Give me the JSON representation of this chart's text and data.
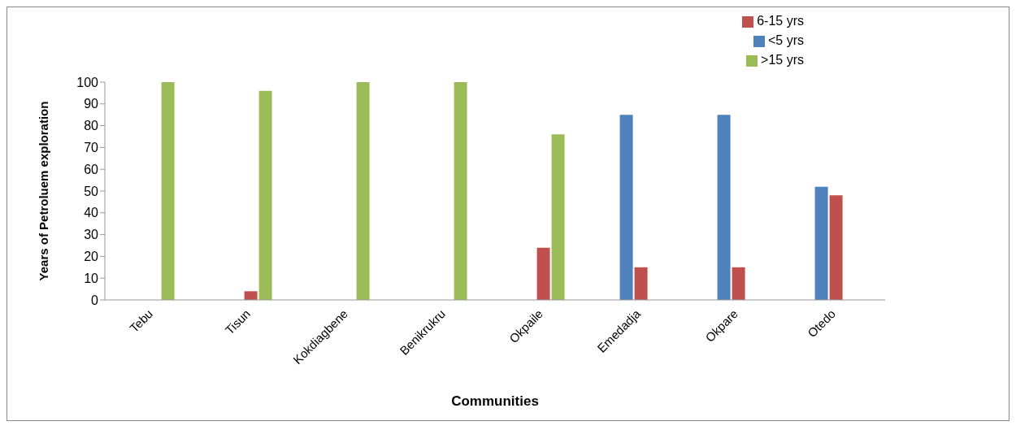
{
  "chart_data": {
    "type": "bar",
    "xlabel": "Communities",
    "ylabel": "Years of Petroluem exploration",
    "categories": [
      "Tebu",
      "Tisun",
      "Kokdiagbene",
      "Benikrukru",
      "Okpaile",
      "Emedadja",
      "Okpare",
      "Otedo"
    ],
    "series": [
      {
        "name": "<5 yrs",
        "color": "#4f81bd",
        "values": [
          0,
          0,
          0,
          0,
          0,
          85,
          85,
          52
        ]
      },
      {
        "name": "6-15 yrs",
        "color": "#c0504d",
        "values": [
          0,
          4,
          0,
          0,
          24,
          15,
          15,
          48
        ]
      },
      {
        "name": ">15 yrs",
        "color": "#9bbb59",
        "values": [
          100,
          96,
          100,
          100,
          76,
          0,
          0,
          0
        ]
      }
    ],
    "ylim": [
      0,
      100
    ],
    "yticks": [
      0,
      10,
      20,
      30,
      40,
      50,
      60,
      70,
      80,
      90,
      100
    ],
    "grid": false,
    "legend": "top right"
  }
}
